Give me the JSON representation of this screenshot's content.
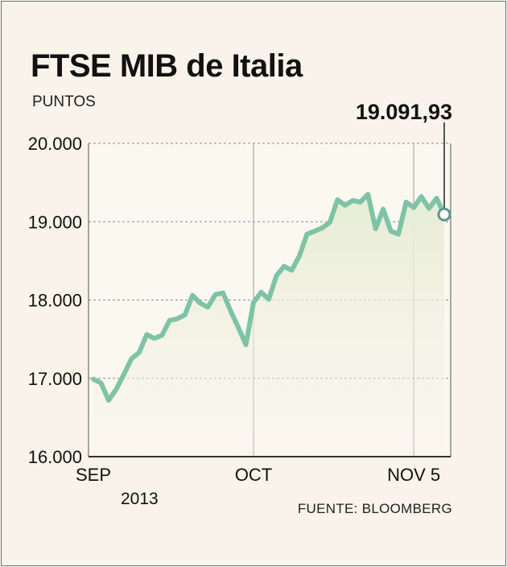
{
  "chart_data": {
    "type": "line",
    "title": "FTSE MIB de Italia",
    "ylabel": "PUNTOS",
    "year_label": "2013",
    "source": "FUENTE: BLOOMBERG",
    "last_value_label": "19.091,93",
    "ylim": [
      16000,
      20000
    ],
    "yticks": [
      16000,
      17000,
      18000,
      19000,
      20000
    ],
    "ytick_labels": [
      "16.000",
      "17.000",
      "18.000",
      "19.000",
      "20.000"
    ],
    "xticks": [
      {
        "label": "SEP",
        "x": 0
      },
      {
        "label": "OCT",
        "x": 21
      },
      {
        "label": "NOV 5",
        "x": 42
      }
    ],
    "grid": true,
    "series": [
      {
        "values": [
          16990,
          16940,
          16720,
          16860,
          17050,
          17250,
          17330,
          17560,
          17510,
          17550,
          17740,
          17760,
          17810,
          18060,
          17960,
          17910,
          18070,
          18090,
          17860,
          17650,
          17430,
          17970,
          18100,
          18010,
          18310,
          18430,
          18380,
          18560,
          18840,
          18880,
          18920,
          18990,
          19280,
          19210,
          19270,
          19250,
          19350,
          18910,
          19160,
          18880,
          18840,
          19250,
          19180,
          19320,
          19170,
          19300,
          19092
        ]
      }
    ],
    "colors": {
      "line": "#7ec3a6",
      "fill_top": "#e6ecd5",
      "background": "#f8f4ea",
      "grid": "#8a8a8a"
    }
  }
}
